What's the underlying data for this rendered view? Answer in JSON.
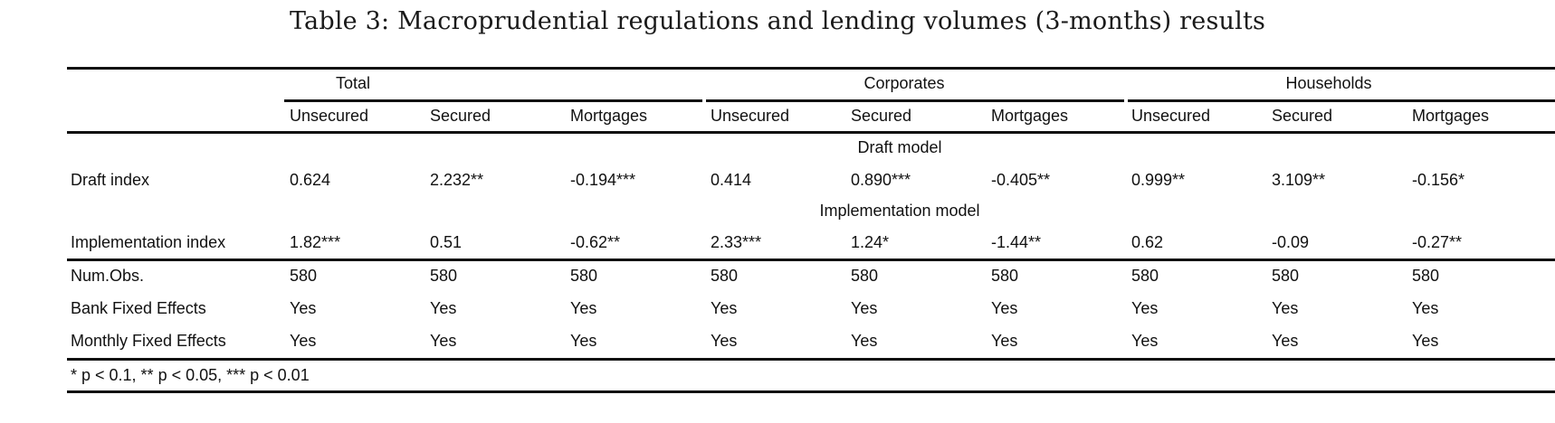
{
  "caption": "Table 3: Macroprudential regulations and lending volumes (3-months) results",
  "groups": [
    "Total",
    "Corporates",
    "Households"
  ],
  "subheaders": [
    "Unsecured",
    "Secured",
    "Mortgages",
    "Unsecured",
    "Secured",
    "Mortgages",
    "Unsecured",
    "Secured",
    "Mortgages"
  ],
  "draft_section_label": "Draft model",
  "draft_row": {
    "label": "Draft index",
    "values": [
      "0.624",
      "2.232**",
      "-0.194***",
      "0.414",
      "0.890***",
      "-0.405**",
      "0.999**",
      "3.109**",
      "-0.156*"
    ]
  },
  "implementation_section_label": "Implementation model",
  "implementation_row": {
    "label": "Implementation index",
    "values": [
      "1.82***",
      "0.51",
      "-0.62**",
      "2.33***",
      "1.24*",
      "-1.44**",
      "0.62",
      "-0.09",
      "-0.27**"
    ]
  },
  "stats_rows": [
    {
      "label": "Num.Obs.",
      "values": [
        "580",
        "580",
        "580",
        "580",
        "580",
        "580",
        "580",
        "580",
        "580"
      ]
    },
    {
      "label": "Bank Fixed Effects",
      "values": [
        "Yes",
        "Yes",
        "Yes",
        "Yes",
        "Yes",
        "Yes",
        "Yes",
        "Yes",
        "Yes"
      ]
    },
    {
      "label": "Monthly Fixed Effects",
      "values": [
        "Yes",
        "Yes",
        "Yes",
        "Yes",
        "Yes",
        "Yes",
        "Yes",
        "Yes",
        "Yes"
      ]
    }
  ],
  "footnote": "* p < 0.1, ** p < 0.05, *** p < 0.01"
}
